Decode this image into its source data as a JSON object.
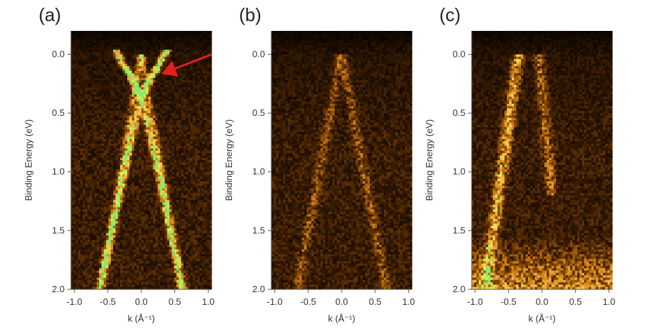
{
  "chart_data": [
    {
      "panel": "(a)",
      "type": "heatmap",
      "xlabel": "k (Å⁻¹)",
      "ylabel": "Binding Energy (eV)",
      "x_ticks": [
        "-1.0",
        "-0.5",
        "0.0",
        "0.5",
        "1.0"
      ],
      "y_ticks": [
        "0.0",
        "0.5",
        "1.0",
        "1.5",
        "2.0"
      ],
      "xlim": [
        -1.05,
        1.05
      ],
      "ylim": [
        -0.2,
        2.0
      ],
      "y_inverted": true,
      "colormap": [
        "#000000",
        "#3a1c02",
        "#8a4a06",
        "#d98a1a",
        "#f4b84a",
        "#e8f050",
        "#7df06a"
      ],
      "features": [
        {
          "kind": "band",
          "k0": 0.0,
          "e0": 0.35,
          "slope": 1.0,
          "e_min": -0.05,
          "e_max": 0.35,
          "intensity": 1.0,
          "width": 0.05
        },
        {
          "kind": "band",
          "k0": 0.0,
          "e0": 0.35,
          "slope": 2.6,
          "e_min": 0.35,
          "e_max": 2.0,
          "intensity": 0.55,
          "width": 0.05
        },
        {
          "kind": "band",
          "k0": 0.0,
          "e0": 0.0,
          "slope": 3.4,
          "e_min": 0.0,
          "e_max": 2.0,
          "intensity": 0.35,
          "width": 0.05
        }
      ],
      "arrow": {
        "from": [
          1.05,
          0.0
        ],
        "to": [
          0.33,
          0.16
        ],
        "color": "#e0201c"
      }
    },
    {
      "panel": "(b)",
      "type": "heatmap",
      "xlabel": "k (Å⁻¹)",
      "ylabel": "Binding Energy (eV)",
      "x_ticks": [
        "-1.0",
        "-0.5",
        "0.0",
        "0.5",
        "1.0"
      ],
      "y_ticks": [
        "0.0",
        "0.5",
        "1.0",
        "1.5",
        "2.0"
      ],
      "xlim": [
        -1.05,
        1.05
      ],
      "ylim": [
        -0.2,
        2.0
      ],
      "y_inverted": true,
      "colormap": [
        "#000000",
        "#3a1c02",
        "#8a4a06",
        "#d98a1a",
        "#f4b84a",
        "#e8f050",
        "#7df06a"
      ],
      "features": [
        {
          "kind": "band",
          "k0": 0.0,
          "e0": 0.0,
          "slope": 3.0,
          "e_min": 0.0,
          "e_max": 2.0,
          "intensity": 0.18,
          "width": 0.07
        }
      ]
    },
    {
      "panel": "(c)",
      "type": "heatmap",
      "xlabel": "k (Å⁻¹)",
      "ylabel": "Binding Energy (eV)",
      "x_ticks": [
        "-1.0",
        "-0.5",
        "0.0",
        "0.5",
        "1.0"
      ],
      "y_ticks": [
        "0.0",
        "0.5",
        "1.0",
        "1.5",
        "2.0"
      ],
      "xlim": [
        -1.05,
        1.05
      ],
      "ylim": [
        -0.2,
        2.0
      ],
      "y_inverted": true,
      "colormap": [
        "#000000",
        "#3a1c02",
        "#8a4a06",
        "#d98a1a",
        "#f4b84a",
        "#e8f050",
        "#7df06a"
      ],
      "features": [
        {
          "kind": "line",
          "k_at_emin": -0.35,
          "e_min": 0.0,
          "k_at_emax": -0.85,
          "e_max": 2.0,
          "intensity": 0.45,
          "width": 0.08
        },
        {
          "kind": "line",
          "k_at_emin": -0.05,
          "e_min": 0.0,
          "k_at_emax": 0.15,
          "e_max": 1.2,
          "intensity": 0.25,
          "width": 0.08
        },
        {
          "kind": "floor",
          "e_from": 1.55,
          "e_to": 2.0,
          "intensity": 0.35
        }
      ]
    }
  ]
}
